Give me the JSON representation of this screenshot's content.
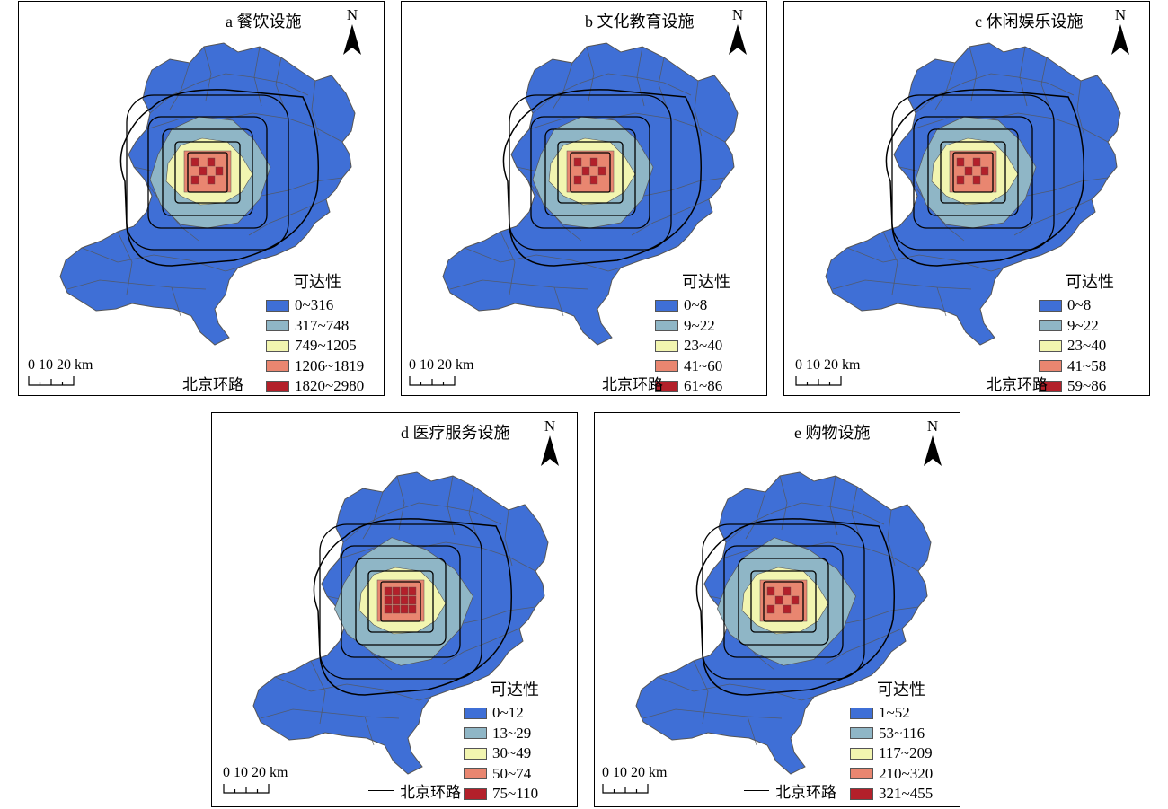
{
  "colors": {
    "class1": "#3f6fd6",
    "class2": "#8fb6c6",
    "class3": "#f2f5b0",
    "class4": "#e98670",
    "class5": "#b3202a",
    "boundary": "#555555",
    "ring": "#000000"
  },
  "common": {
    "legend_title": "可达性",
    "north_label": "N",
    "scale_label": "0 10 20 km",
    "ring_label": "北京环路",
    "north_icon": "north-arrow-icon"
  },
  "panels": [
    {
      "id": "a",
      "title": "a 餐饮设施",
      "legend": [
        "0~316",
        "317~748",
        "749~1205",
        "1206~1819",
        "1820~2980"
      ]
    },
    {
      "id": "b",
      "title": "b 文化教育设施",
      "legend": [
        "0~8",
        "9~22",
        "23~40",
        "41~60",
        "61~86"
      ]
    },
    {
      "id": "c",
      "title": "c 休闲娱乐设施",
      "legend": [
        "0~8",
        "9~22",
        "23~40",
        "41~58",
        "59~86"
      ]
    },
    {
      "id": "d",
      "title": "d 医疗服务设施",
      "legend": [
        "0~12",
        "13~29",
        "30~49",
        "50~74",
        "75~110"
      ]
    },
    {
      "id": "e",
      "title": "e 购物设施",
      "legend": [
        "1~52",
        "53~116",
        "117~209",
        "210~320",
        "321~455"
      ]
    }
  ]
}
